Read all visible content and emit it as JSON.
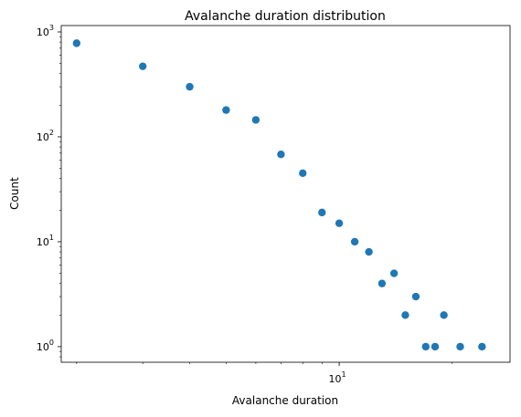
{
  "chart_data": {
    "type": "scatter",
    "title": "Avalanche duration distribution",
    "xlabel": "Avalanche duration",
    "ylabel": "Count",
    "x_scale": "log",
    "y_scale": "log",
    "xlim": [
      1.82,
      28.5
    ],
    "ylim": [
      0.71,
      1150
    ],
    "grid": false,
    "legend": "none",
    "x_tick_labels": [
      {
        "value": 10,
        "base": "10",
        "exp": "1"
      }
    ],
    "y_tick_labels": [
      {
        "value": 1,
        "base": "10",
        "exp": "0"
      },
      {
        "value": 10,
        "base": "10",
        "exp": "1"
      },
      {
        "value": 100,
        "base": "10",
        "exp": "2"
      },
      {
        "value": 1000,
        "base": "10",
        "exp": "3"
      }
    ],
    "marker_color": "#1f77b4",
    "series": [
      {
        "x": [
          2,
          3,
          4,
          5,
          6,
          7,
          8,
          9,
          10,
          11,
          12,
          13,
          14,
          15,
          16,
          17,
          18,
          19,
          21,
          24
        ],
        "y": [
          780,
          470,
          300,
          180,
          145,
          68,
          45,
          19,
          15,
          10,
          8,
          4,
          5,
          2,
          3,
          1,
          1,
          2,
          1,
          1
        ]
      }
    ]
  }
}
